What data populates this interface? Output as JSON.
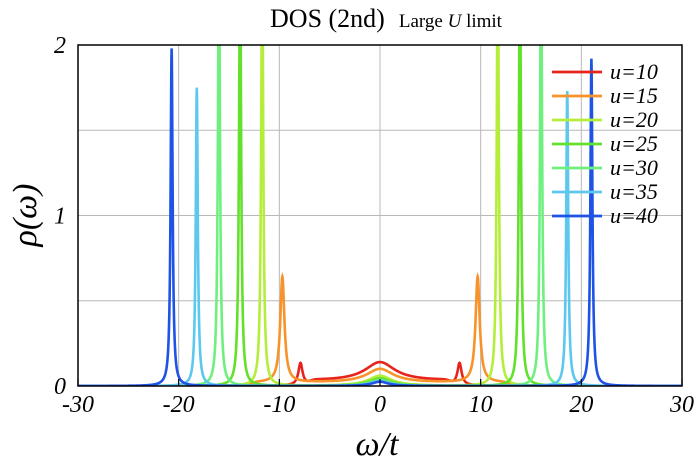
{
  "chart_data": {
    "type": "line",
    "title": "DOS (2nd)",
    "subtitle_parts": [
      "Large ",
      "U",
      " limit"
    ],
    "xlabel": "ω/t",
    "ylabel": "ρ(ω)",
    "xlim": [
      -30,
      30
    ],
    "ylim": [
      0,
      2
    ],
    "xticks": [
      -30,
      -20,
      -10,
      0,
      10,
      20,
      30
    ],
    "xtick_labels": [
      "-30",
      "-20",
      "-10",
      "0",
      "10",
      "20",
      "30"
    ],
    "yticks": [
      0,
      1,
      2
    ],
    "ytick_labels": [
      "0",
      "1",
      "2"
    ],
    "grid": true,
    "legend_position": "top-right",
    "series": [
      {
        "name": "u=10",
        "color": "#e8231b",
        "center_height": 0.11,
        "center_width": 1.8,
        "peaks": [
          {
            "x": 7.9,
            "height": 0.13
          }
        ],
        "sat_edge": 3.2,
        "sat_height": 0.03
      },
      {
        "name": "u=15",
        "color": "#f7932a",
        "center_height": 0.08,
        "center_width": 1.6,
        "peaks": [
          {
            "x": 9.7,
            "height": 0.62
          }
        ],
        "sat_edge": 9.0,
        "sat_height": 0.02
      },
      {
        "name": "u=20",
        "color": "#b5ee3a",
        "center_height": 0.06,
        "center_width": 1.4,
        "peaks": [
          {
            "x": 11.7,
            "height": 2.6
          }
        ],
        "sat_edge": 0,
        "sat_height": 0
      },
      {
        "name": "u=25",
        "color": "#62e12a",
        "center_height": 0.045,
        "center_width": 1.3,
        "peaks": [
          {
            "x": 13.9,
            "height": 2.6
          }
        ],
        "sat_edge": 0,
        "sat_height": 0
      },
      {
        "name": "u=30",
        "color": "#6ff07e",
        "center_height": 0.035,
        "center_width": 1.2,
        "peaks": [
          {
            "x": 16.0,
            "height": 2.6
          }
        ],
        "sat_edge": 0,
        "sat_height": 0
      },
      {
        "name": "u=35",
        "color": "#5cc8ee",
        "center_height": 0.03,
        "center_width": 1.1,
        "peaks": [
          {
            "x": -18.2,
            "height": 1.75
          },
          {
            "x": 18.6,
            "height": 1.73
          }
        ],
        "sat_edge": 0,
        "sat_height": 0
      },
      {
        "name": "u=40",
        "color": "#1e53e6",
        "center_height": 0.025,
        "center_width": 1.0,
        "peaks": [
          {
            "x": -20.7,
            "height": 1.98
          },
          {
            "x": 21.0,
            "height": 1.92
          }
        ],
        "sat_edge": 0,
        "sat_height": 0
      }
    ]
  }
}
